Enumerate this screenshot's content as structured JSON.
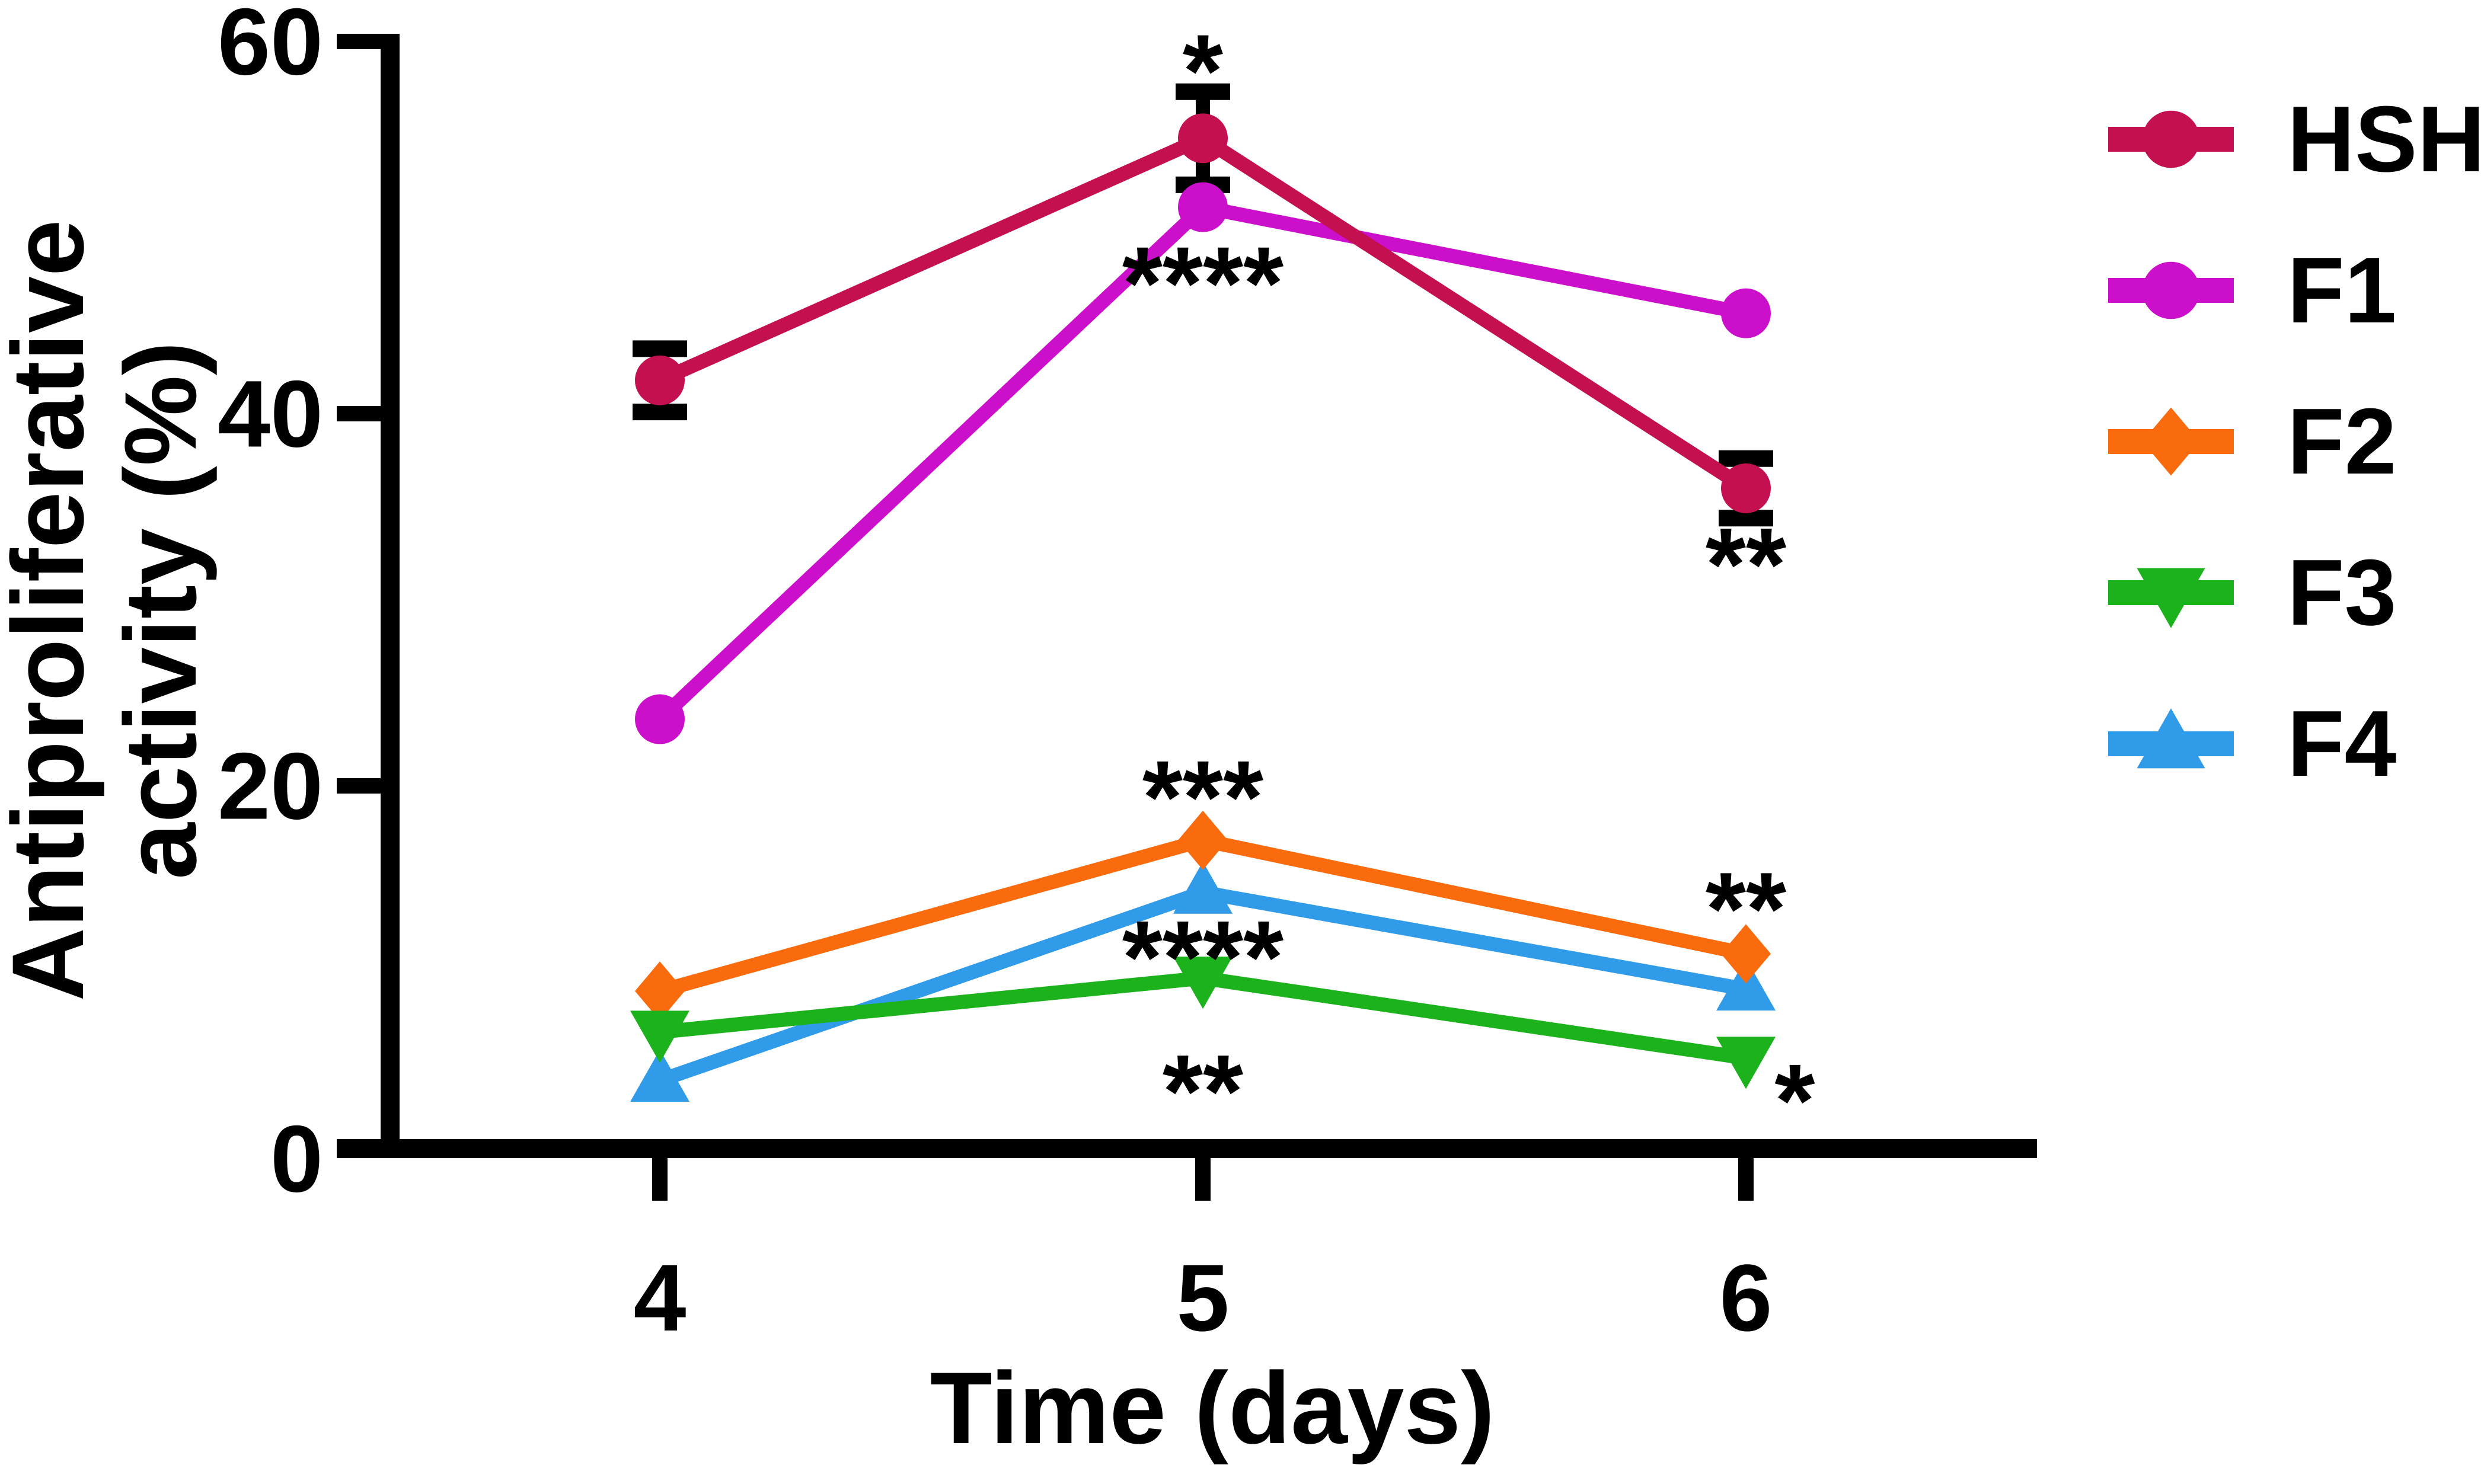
{
  "figure": {
    "background": "#ffffff",
    "axis_color": "#000000"
  },
  "chart_data": {
    "type": "line",
    "title": "",
    "xlabel": "Time (days)",
    "ylabel": "Antiproliferative activity (%)",
    "ylabel_lines": [
      "Antiproliferative",
      "activity (%)"
    ],
    "categories": [
      4,
      5,
      6
    ],
    "xtick_labels": [
      "4",
      "5",
      "6"
    ],
    "ytick_labels": [
      "0",
      "20",
      "40",
      "60"
    ],
    "yticks": [
      0,
      20,
      40,
      60
    ],
    "ylim": [
      0,
      60
    ],
    "xlim": [
      3.5,
      6.55
    ],
    "grid": false,
    "legend_position": "right",
    "series": [
      {
        "name": "HSH",
        "color": "#C41050",
        "marker": "circle",
        "values": [
          41.8,
          54.8,
          36.0
        ],
        "error": [
          1.7,
          2.5,
          1.6
        ]
      },
      {
        "name": "F1",
        "color": "#CB0FCB",
        "marker": "circle",
        "values": [
          23.6,
          51.1,
          45.4
        ],
        "error": [
          0,
          0,
          0
        ]
      },
      {
        "name": "F2",
        "color": "#FA6B0E",
        "marker": "diamond",
        "values": [
          9.0,
          17.1,
          11.0
        ],
        "error": [
          0,
          0,
          0
        ]
      },
      {
        "name": "F3",
        "color": "#1BB21B",
        "marker": "triangle-down",
        "values": [
          6.8,
          9.7,
          5.4
        ],
        "error": [
          0,
          0,
          0
        ]
      },
      {
        "name": "F4",
        "color": "#2F9BE9",
        "marker": "triangle-up",
        "values": [
          4.2,
          14.3,
          9.1
        ],
        "error": [
          0,
          0,
          0
        ]
      }
    ],
    "annotations": [
      {
        "text": "*",
        "series": "HSH",
        "x": 5,
        "y": 59.3
      },
      {
        "text": "****",
        "series": "F1",
        "x": 5,
        "y": 47.9
      },
      {
        "text": "***",
        "series": "F2",
        "x": 5,
        "y": 20.3
      },
      {
        "text": "****",
        "series": "F4",
        "x": 5,
        "y": 11.7
      },
      {
        "text": "**",
        "series": "F3",
        "x": 5,
        "y": 4.5
      },
      {
        "text": "**",
        "series": "HSH",
        "x": 6,
        "y": 32.8
      },
      {
        "text": "**",
        "series": "F2",
        "x": 6,
        "y": 14.3
      },
      {
        "text": "*",
        "series": "F3",
        "x": 6.09,
        "y": 4.0
      }
    ]
  }
}
